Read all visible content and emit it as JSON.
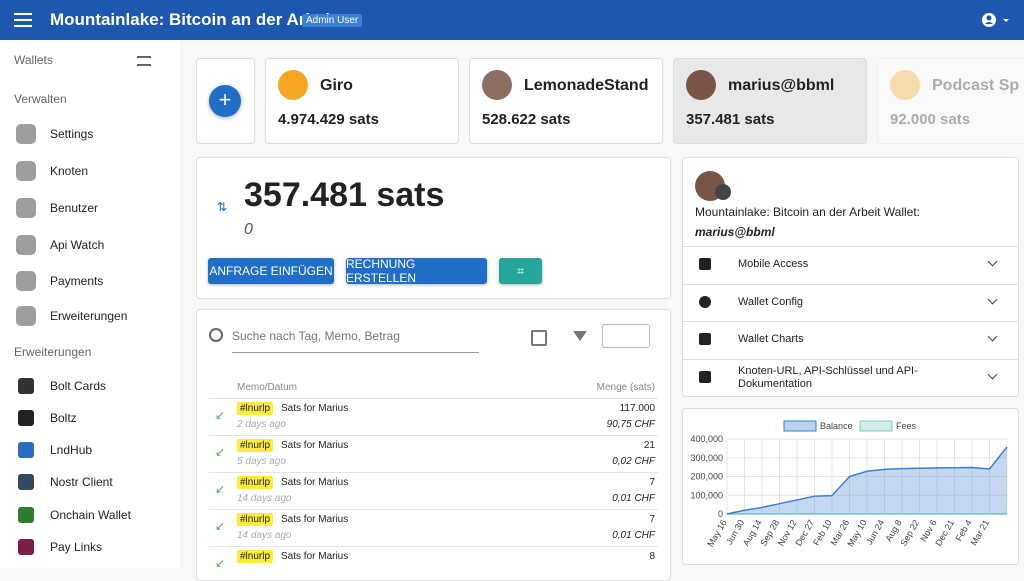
{
  "header": {
    "title": "Mountainlake: Bitcoin an der Arbeit",
    "badge": "Admin User"
  },
  "sidebar": {
    "wallets_label": "Wallets",
    "manage_label": "Verwalten",
    "manage_items": [
      "Settings",
      "Knoten",
      "Benutzer",
      "Api Watch",
      "Payments",
      "Erweiterungen"
    ],
    "extensions_label": "Erweiterungen",
    "extensions": [
      "Bolt Cards",
      "Boltz",
      "LndHub",
      "Nostr Client",
      "Onchain Wallet",
      "Pay Links"
    ]
  },
  "wallets": [
    {
      "name": "Giro",
      "balance": "4.974.429 sats"
    },
    {
      "name": "LemonadeStand",
      "balance": "528.622 sats"
    },
    {
      "name": "marius@bbml",
      "balance": "357.481 sats"
    },
    {
      "name": "Podcast Sp",
      "balance": "92.000 sats"
    }
  ],
  "balance": {
    "amount": "357.481 sats",
    "pending": "0",
    "buttons": [
      "ANFRAGE EINFÜGEN",
      "RECHNUNG ERSTELLEN"
    ]
  },
  "transactions": {
    "search_placeholder": "Suche nach Tag, Memo, Betrag",
    "columns": [
      "Memo/Datum",
      "Menge (sats)"
    ],
    "rows": [
      {
        "tag": "#lnurlp",
        "memo": "Sats for Marius",
        "time": "2 days ago",
        "amount": "117.000",
        "fiat": "90,75 CHF"
      },
      {
        "tag": "#lnurlp",
        "memo": "Sats for Marius",
        "time": "5 days ago",
        "amount": "21",
        "fiat": "0,02 CHF"
      },
      {
        "tag": "#lnurlp",
        "memo": "Sats for Marius",
        "time": "14 days ago",
        "amount": "7",
        "fiat": "0,01 CHF"
      },
      {
        "tag": "#lnurlp",
        "memo": "Sats for Marius",
        "time": "14 days ago",
        "amount": "7",
        "fiat": "0,01 CHF"
      },
      {
        "tag": "#lnurlp",
        "memo": "Sats for Marius",
        "amount": "8"
      }
    ]
  },
  "wallet_info": {
    "title": "Mountainlake: Bitcoin an der Arbeit Wallet:",
    "name": "marius@bbml",
    "sections": [
      "Mobile Access",
      "Wallet Config",
      "Wallet Charts",
      "Knoten-URL, API-Schlüssel und API-Dokumentation"
    ]
  },
  "chart_data": {
    "type": "area",
    "categories": [
      "May 16",
      "Jun 30",
      "Aug 14",
      "Sep 28",
      "Nov 12",
      "Dec 27",
      "Feb 10",
      "Mar 26",
      "May 10",
      "Jun 24",
      "Aug 8",
      "Sep 22",
      "Nov 6",
      "Dec 21",
      "Feb 4",
      "Mar 21",
      null
    ],
    "series": [
      {
        "name": "Balance",
        "color": "#3a7fd0",
        "values": [
          0,
          20000,
          35000,
          55000,
          75000,
          95000,
          98000,
          200000,
          228000,
          238000,
          242000,
          244000,
          246000,
          247000,
          248000,
          240000,
          357481
        ]
      },
      {
        "name": "Fees",
        "color": "#80cbc4",
        "values": [
          0,
          0,
          0,
          0,
          0,
          0,
          0,
          0,
          0,
          0,
          0,
          0,
          0,
          0,
          0,
          0,
          0
        ]
      }
    ],
    "ylim": [
      0,
      400000
    ],
    "yticks": [
      0,
      {
        "value": 100000,
        "label": "100,000"
      },
      {
        "value": 200000,
        "label": "200,000"
      },
      {
        "value": 300000,
        "label": "300,000"
      },
      {
        "value": 400000,
        "label": "400,000"
      }
    ],
    "grid": true
  }
}
